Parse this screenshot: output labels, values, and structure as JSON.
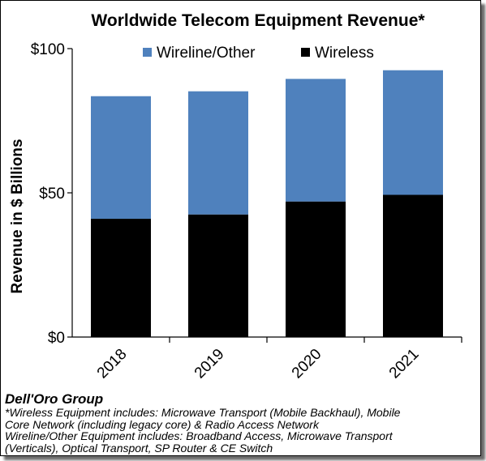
{
  "chart_data": {
    "type": "bar",
    "stacked": true,
    "title": "Worldwide Telecom Equipment Revenue*",
    "ylabel": "Revenue in $ Billions",
    "xlabel": "",
    "categories": [
      "2018",
      "2019",
      "2020",
      "2021"
    ],
    "series": [
      {
        "name": "Wireless",
        "values": [
          41,
          42.5,
          47,
          49.3
        ],
        "color": "#000000"
      },
      {
        "name": "Wireline/Other",
        "values": [
          42.5,
          42.7,
          42.5,
          43.2
        ],
        "color": "#4f81bd"
      }
    ],
    "ylim": [
      0,
      100
    ],
    "yticks": [
      0,
      50,
      100
    ],
    "ytick_labels": [
      "$0",
      "$50",
      "$100"
    ],
    "legend_position": "top",
    "legend_order": [
      "Wireline/Other",
      "Wireless"
    ],
    "grid": false
  },
  "footer": {
    "source": "Dell'Oro Group",
    "note_lines": [
      "*Wireless Equipment includes: Microwave Transport (Mobile Backhaul), Mobile",
      "Core Network (including legacy core) & Radio Access Network",
      "Wireline/Other Equipment includes: Broadband Access, Microwave Transport",
      "(Verticals), Optical Transport, SP Router & CE Switch"
    ]
  }
}
